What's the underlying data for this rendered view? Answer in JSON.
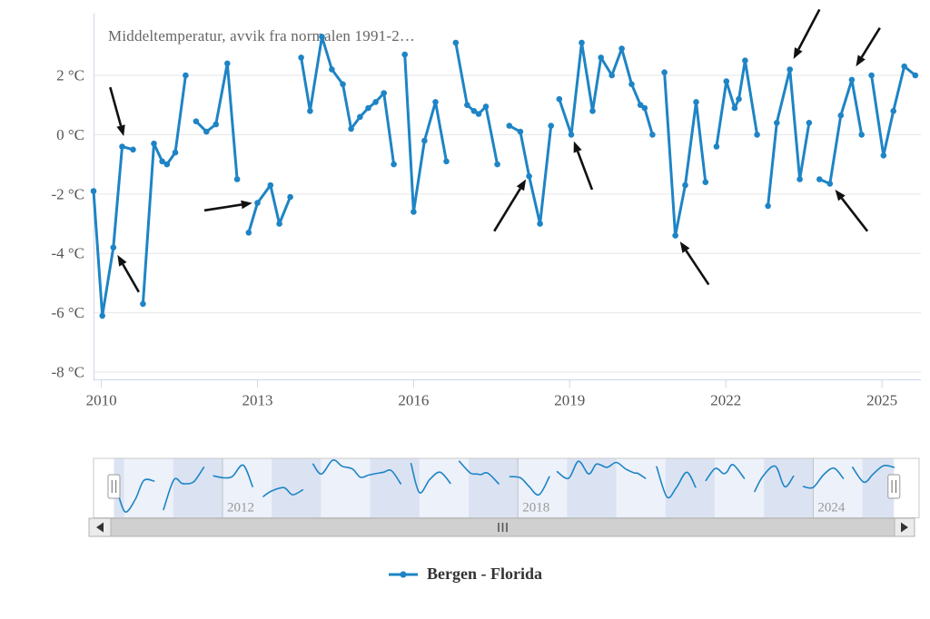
{
  "chart_data": {
    "type": "line",
    "title": "Middeltemperatur, avvik fra normalen 1991-2…",
    "legend": {
      "series_label": "Bergen - Florida"
    },
    "y_axis": {
      "unit": "°C",
      "ticks": [
        {
          "value": 2,
          "label": "2 °C"
        },
        {
          "value": 0,
          "label": "0 °C"
        },
        {
          "value": -2,
          "label": "-2 °C"
        },
        {
          "value": -4,
          "label": "-4 °C"
        },
        {
          "value": -6,
          "label": "-6 °C"
        },
        {
          "value": -8,
          "label": "-8 °C"
        }
      ]
    },
    "x_axis": {
      "ticks": [
        {
          "value": 2010,
          "label": "2010"
        },
        {
          "value": 2013,
          "label": "2013"
        },
        {
          "value": 2016,
          "label": "2016"
        },
        {
          "value": 2019,
          "label": "2019"
        },
        {
          "value": 2022,
          "label": "2022"
        },
        {
          "value": 2025,
          "label": "2025"
        }
      ]
    },
    "series": [
      {
        "name": "Bergen - Florida",
        "unit": "°C (avvik fra normalen)",
        "segments": [
          [
            [
              2009.85,
              -1.9
            ],
            [
              2010.02,
              -6.1
            ],
            [
              2010.23,
              -3.8
            ],
            [
              2010.4,
              -0.4
            ],
            [
              2010.61,
              -0.5
            ]
          ],
          [
            [
              2010.8,
              -5.7
            ],
            [
              2011.01,
              -0.3
            ],
            [
              2011.17,
              -0.9
            ],
            [
              2011.26,
              -1.0
            ],
            [
              2011.42,
              -0.6
            ],
            [
              2011.62,
              2.0
            ]
          ],
          [
            [
              2011.82,
              0.45
            ],
            [
              2012.02,
              0.1
            ],
            [
              2012.2,
              0.35
            ],
            [
              2012.42,
              2.4
            ],
            [
              2012.61,
              -1.5
            ]
          ],
          [
            [
              2012.83,
              -3.3
            ],
            [
              2013.0,
              -2.3
            ],
            [
              2013.25,
              -1.7
            ],
            [
              2013.42,
              -3.0
            ],
            [
              2013.63,
              -2.1
            ]
          ],
          [
            [
              2013.84,
              2.6
            ],
            [
              2014.01,
              0.8
            ],
            [
              2014.24,
              3.3
            ],
            [
              2014.43,
              2.2
            ],
            [
              2014.64,
              1.7
            ],
            [
              2014.8,
              0.2
            ],
            [
              2014.97,
              0.6
            ],
            [
              2015.13,
              0.9
            ],
            [
              2015.27,
              1.1
            ],
            [
              2015.43,
              1.4
            ],
            [
              2015.62,
              -1.0
            ]
          ],
          [
            [
              2015.83,
              2.7
            ],
            [
              2016.0,
              -2.6
            ],
            [
              2016.21,
              -0.2
            ],
            [
              2016.42,
              1.1
            ],
            [
              2016.63,
              -0.9
            ]
          ],
          [
            [
              2016.81,
              3.1
            ],
            [
              2017.03,
              1.0
            ],
            [
              2017.16,
              0.8
            ],
            [
              2017.25,
              0.7
            ],
            [
              2017.39,
              0.95
            ],
            [
              2017.61,
              -1.0
            ]
          ],
          [
            [
              2017.84,
              0.3
            ],
            [
              2018.05,
              0.1
            ],
            [
              2018.22,
              -1.4
            ],
            [
              2018.43,
              -3.0
            ],
            [
              2018.64,
              0.3
            ]
          ],
          [
            [
              2018.8,
              1.2
            ],
            [
              2019.03,
              0.0
            ],
            [
              2019.23,
              3.1
            ],
            [
              2019.44,
              0.8
            ],
            [
              2019.6,
              2.6
            ],
            [
              2019.81,
              2.0
            ],
            [
              2020.0,
              2.9
            ],
            [
              2020.19,
              1.7
            ],
            [
              2020.36,
              1.0
            ],
            [
              2020.44,
              0.9
            ],
            [
              2020.59,
              0.0
            ]
          ],
          [
            [
              2020.82,
              2.1
            ],
            [
              2021.03,
              -3.4
            ],
            [
              2021.22,
              -1.7
            ],
            [
              2021.43,
              1.1
            ],
            [
              2021.61,
              -1.6
            ]
          ],
          [
            [
              2021.82,
              -0.4
            ],
            [
              2022.01,
              1.8
            ],
            [
              2022.17,
              0.9
            ],
            [
              2022.25,
              1.2
            ],
            [
              2022.37,
              2.5
            ],
            [
              2022.6,
              0.0
            ]
          ],
          [
            [
              2022.81,
              -2.4
            ],
            [
              2022.98,
              0.4
            ],
            [
              2023.23,
              2.2
            ],
            [
              2023.42,
              -1.5
            ],
            [
              2023.6,
              0.4
            ]
          ],
          [
            [
              2023.8,
              -1.5
            ],
            [
              2024.0,
              -1.65
            ],
            [
              2024.21,
              0.65
            ],
            [
              2024.42,
              1.85
            ],
            [
              2024.61,
              0.0
            ]
          ],
          [
            [
              2024.8,
              2.0
            ],
            [
              2025.03,
              -0.7
            ],
            [
              2025.22,
              0.8
            ],
            [
              2025.43,
              2.3
            ],
            [
              2025.64,
              2.0
            ]
          ]
        ]
      }
    ],
    "annotations": {
      "arrows": [
        {
          "from": [
            2010.17,
            1.6
          ],
          "to": [
            2010.43,
            -0.05
          ]
        },
        {
          "from": [
            2010.72,
            -5.3
          ],
          "to": [
            2010.31,
            -4.05
          ]
        },
        {
          "from": [
            2011.98,
            -2.55
          ],
          "to": [
            2012.9,
            -2.3
          ]
        },
        {
          "from": [
            2017.55,
            -3.25
          ],
          "to": [
            2018.16,
            -1.5
          ]
        },
        {
          "from": [
            2019.43,
            -1.85
          ],
          "to": [
            2019.08,
            -0.22
          ]
        },
        {
          "from": [
            2021.67,
            -5.05
          ],
          "to": [
            2021.12,
            -3.6
          ]
        },
        {
          "from": [
            2023.8,
            4.22
          ],
          "to": [
            2023.3,
            2.55
          ]
        },
        {
          "from": [
            2024.96,
            3.6
          ],
          "to": [
            2024.5,
            2.3
          ]
        },
        {
          "from": [
            2024.72,
            -3.25
          ],
          "to": [
            2024.1,
            -1.85
          ]
        }
      ]
    },
    "navigator": {
      "year_labels": [
        {
          "value": 2012,
          "label": "2012"
        },
        {
          "value": 2018,
          "label": "2018"
        },
        {
          "value": 2024,
          "label": "2024"
        }
      ]
    }
  },
  "icons": {
    "scrollbar_left": "left-triangle",
    "scrollbar_right": "right-triangle",
    "scrollbar_grip": "three-vertical-bars",
    "navigator_handle": "double-vertical-bars"
  },
  "colors": {
    "series": "#1e84c5",
    "grid": "#e6e6e6",
    "axis_line": "#ccd6eb",
    "axis_label": "#555555",
    "title": "#666666",
    "nav_mask": "#dbe3f3",
    "nav_band": "rgba(255,255,255,0.5)",
    "nav_outline": "#c9c9c9",
    "nav_grid": "#a8a8a8",
    "nav_label": "#999999",
    "scroll_track": "#d0d0d0",
    "scroll_button": "#ebebeb",
    "scroll_border": "#b3b3b3",
    "arrow": "#111111",
    "legend_text": "#333333"
  }
}
